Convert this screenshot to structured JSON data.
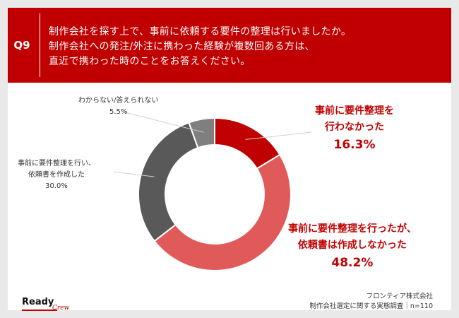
{
  "header": {
    "question_number": "Q9",
    "lines": [
      "制作会社を探す上で、事前に依頼する要件の整理は行いましたか。",
      "制作会社への発注/外注に携わった経験が複数回ある方は、",
      "直近で携わった時のことをお答えください。"
    ]
  },
  "chart_data": {
    "type": "pie",
    "donut": true,
    "start": "top",
    "direction": "clockwise",
    "slices": [
      {
        "label_lines": [
          "事前に要件整理を",
          "行わなかった"
        ],
        "value": 16.3,
        "value_text": "16.3%",
        "color": "#c00000",
        "label_style": "red"
      },
      {
        "label_lines": [
          "事前に要件整理を行ったが、",
          "依頼書は作成しなかった"
        ],
        "value": 48.2,
        "value_text": "48.2%",
        "color": "#e05a5a",
        "label_style": "red"
      },
      {
        "label_lines": [
          "事前に要件整理を行い、",
          "依頼書を作成した"
        ],
        "value": 30.0,
        "value_text": "30.0%",
        "color": "#595959",
        "label_style": "gray"
      },
      {
        "label_lines": [
          "わからない/答えられない"
        ],
        "value": 5.5,
        "value_text": "5.5%",
        "color": "#7f7f7f",
        "label_style": "gray"
      }
    ]
  },
  "footer": {
    "logo_main": "Ready",
    "logo_sub": "Crew",
    "source_lines": [
      "フロンティア株式会社",
      "制作会社選定に関する実態調査｜n=110"
    ]
  }
}
